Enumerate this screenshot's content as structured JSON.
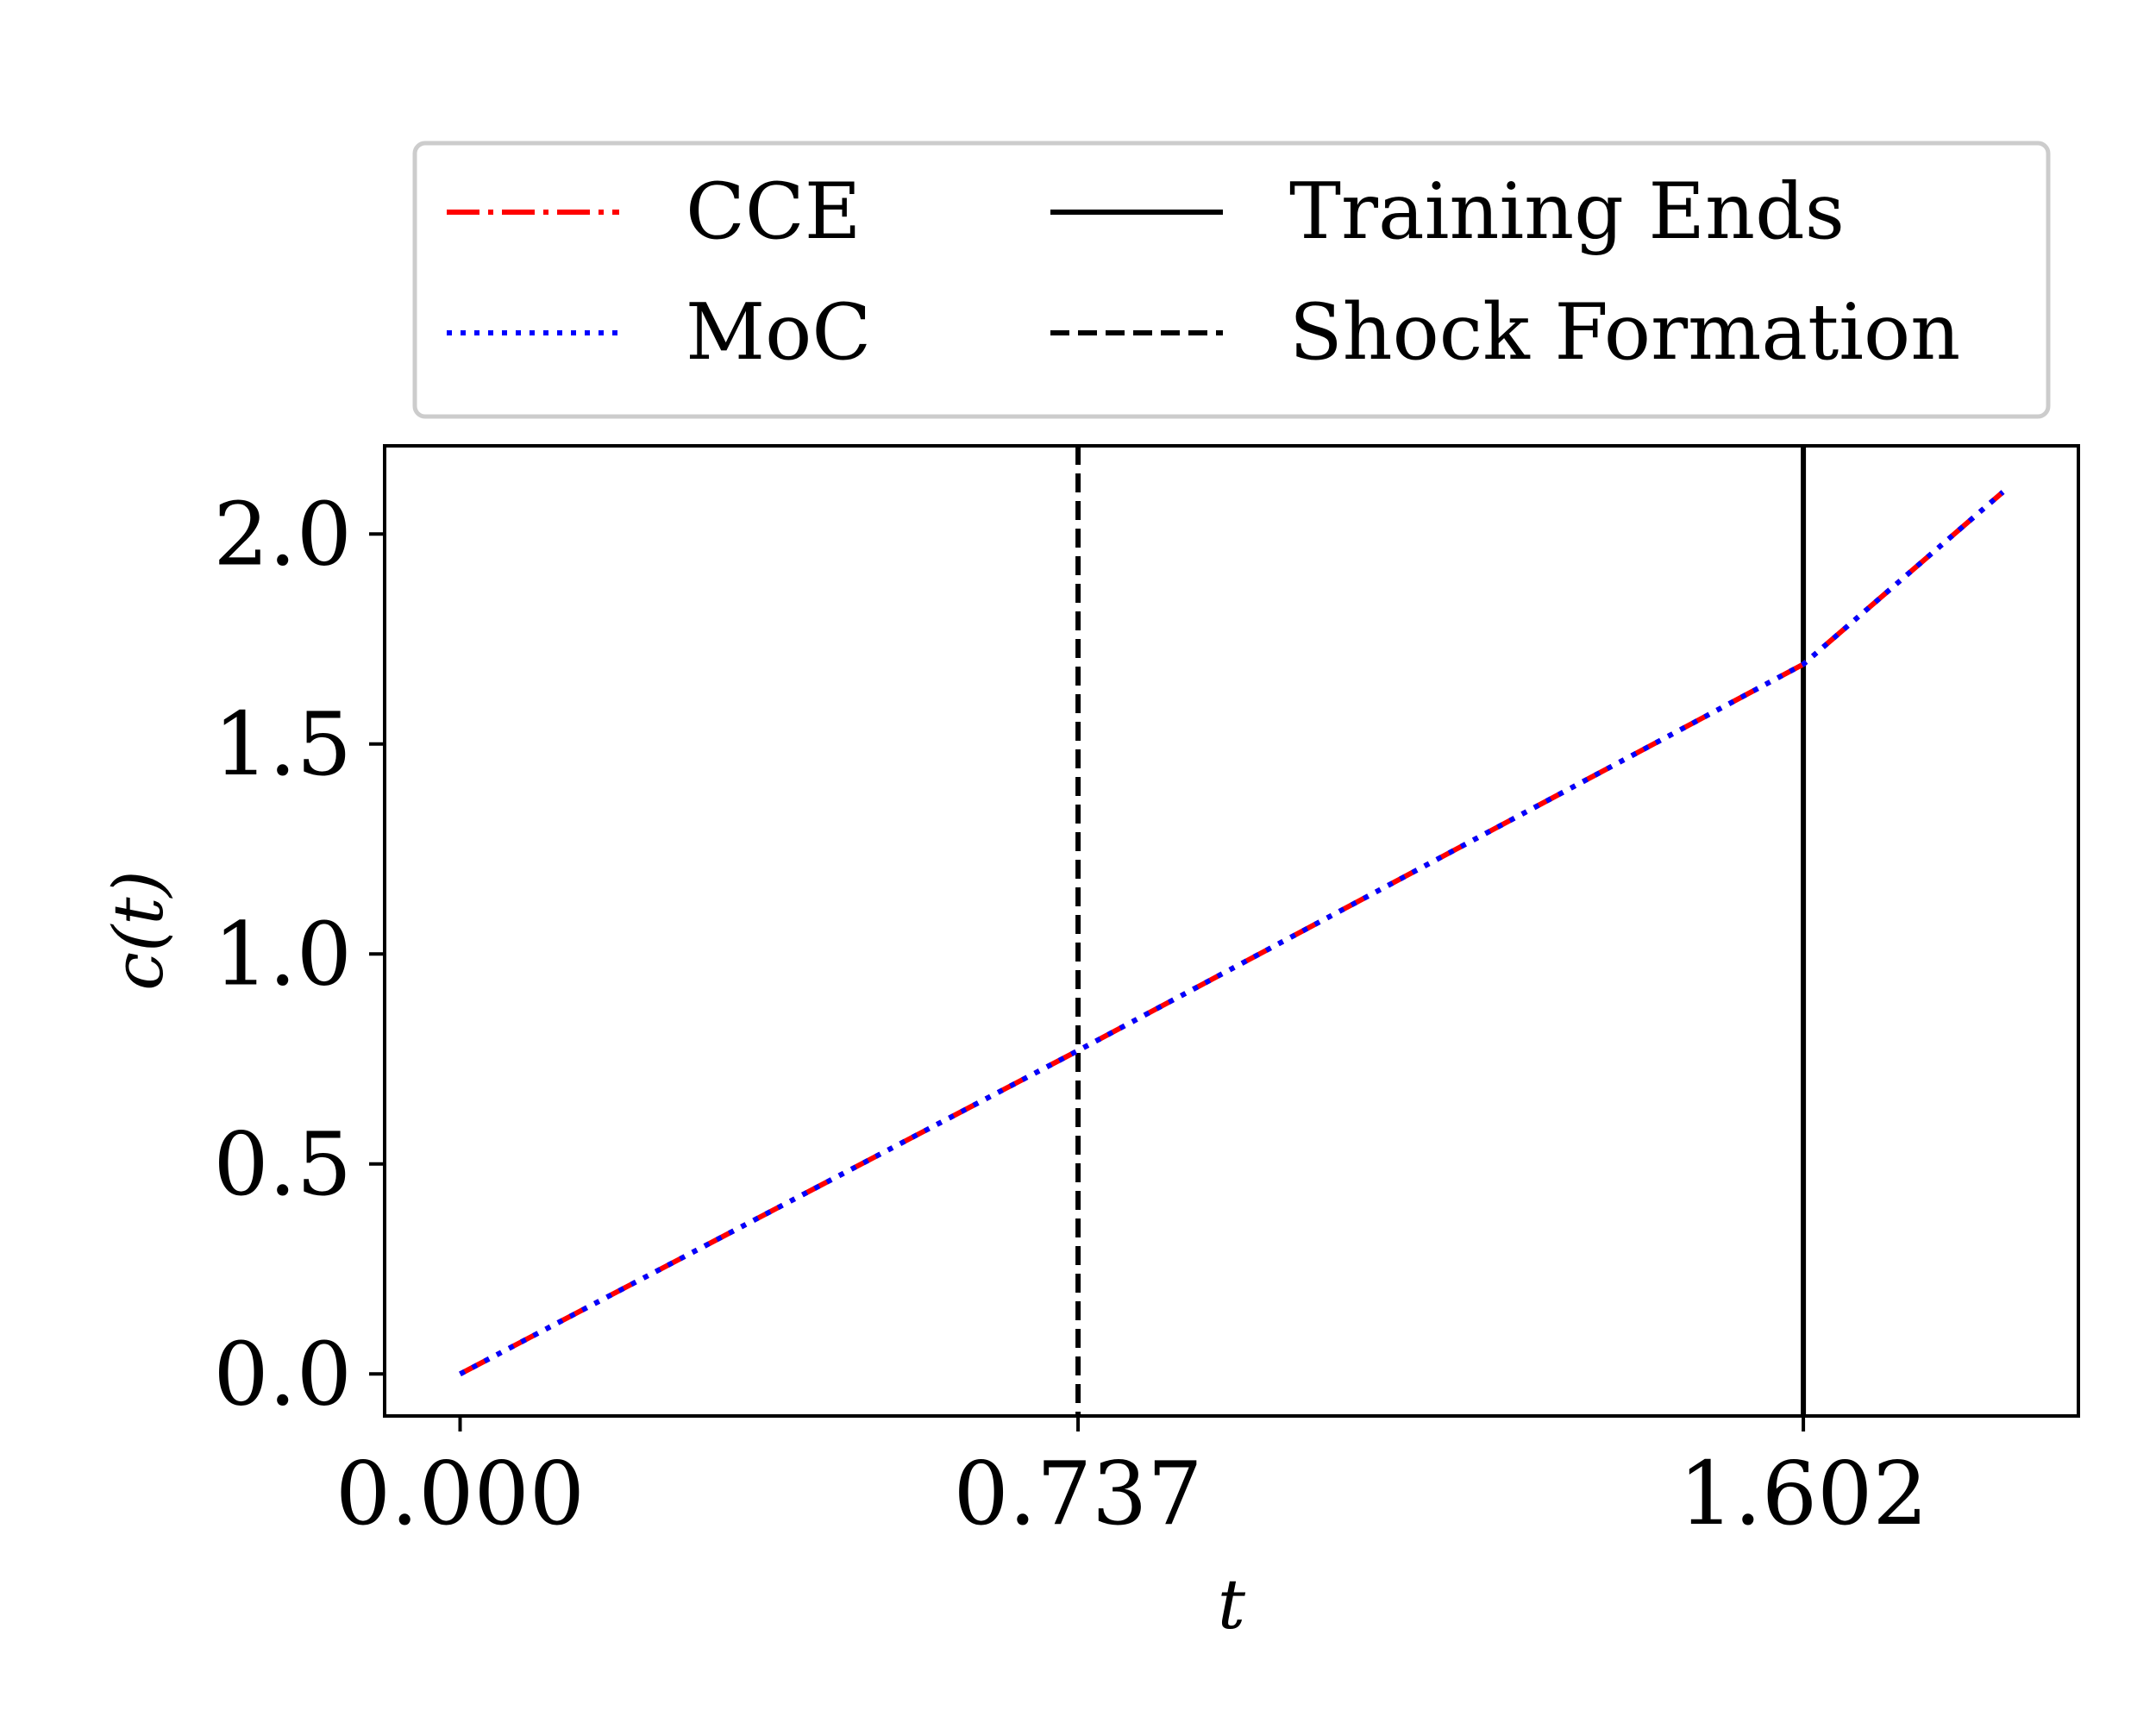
{
  "chart_data": {
    "type": "line",
    "title": "",
    "xlabel": "t",
    "ylabel": "c(t)",
    "xlim": [
      -0.09,
      1.93
    ],
    "ylim": [
      -0.1,
      2.21
    ],
    "x_ticks": [
      0.0,
      0.737,
      1.602
    ],
    "x_tick_labels": [
      "0.000",
      "0.737",
      "1.602"
    ],
    "y_ticks": [
      0.0,
      0.5,
      1.0,
      1.5,
      2.0
    ],
    "y_tick_labels": [
      "0.0",
      "0.5",
      "1.0",
      "1.5",
      "2.0"
    ],
    "grid": false,
    "legend_position": "above plot, two columns",
    "series": [
      {
        "name": "CCE",
        "color": "#ff0000",
        "style": "dash-dot",
        "x": [
          0.0,
          0.737,
          1.602,
          1.84
        ],
        "y": [
          0.0,
          0.77,
          1.69,
          2.1
        ]
      },
      {
        "name": "MoC",
        "color": "#0000ff",
        "style": "dotted",
        "x": [
          0.0,
          0.737,
          1.602,
          1.84
        ],
        "y": [
          0.0,
          0.77,
          1.69,
          2.1
        ]
      }
    ],
    "vertical_lines": [
      {
        "name": "Training Ends",
        "x": 1.602,
        "color": "#000000",
        "style": "solid"
      },
      {
        "name": "Shock Formation",
        "x": 0.737,
        "color": "#000000",
        "style": "dashed"
      }
    ]
  }
}
